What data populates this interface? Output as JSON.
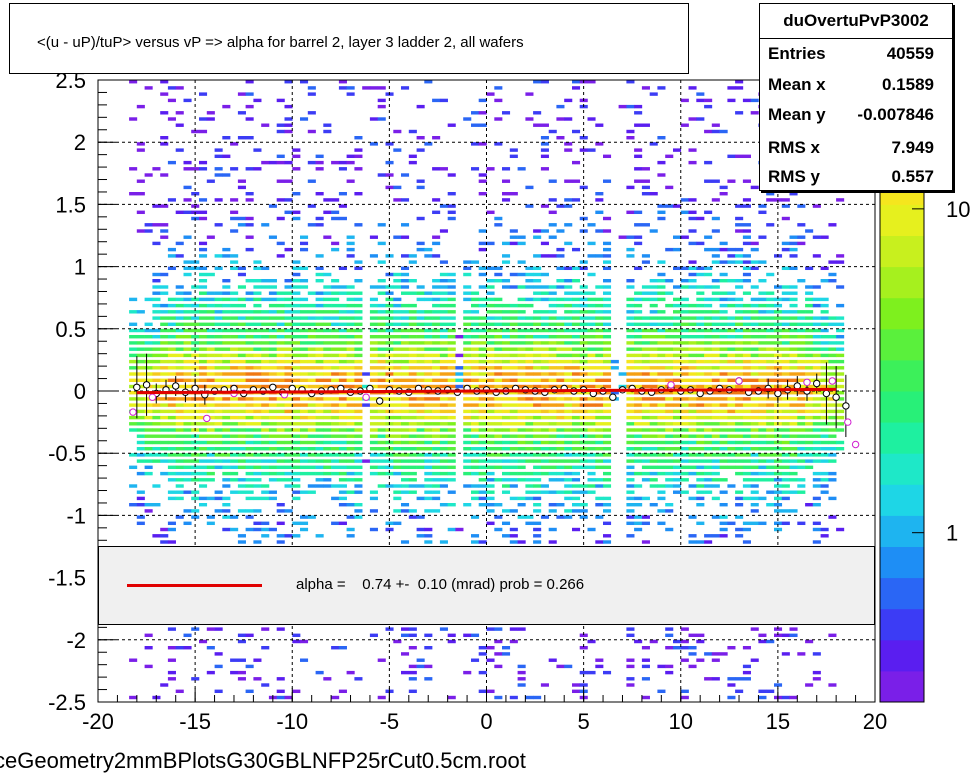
{
  "title": "<(u - uP)/tuP> versus   vP => alpha for barrel 2, layer 3 ladder 2, all wafers",
  "stats": {
    "name": "duOvertuPvP3002",
    "rows": [
      {
        "key": "Entries",
        "value": "40559"
      },
      {
        "key": "Mean x",
        "value": "0.1589"
      },
      {
        "key": "Mean y",
        "value": "-0.007846"
      },
      {
        "key": "RMS x",
        "value": "7.949"
      },
      {
        "key": "RMS y",
        "value": "0.557"
      }
    ]
  },
  "fit_legend": {
    "text": "alpha =    0.74 +-  0.10 (mrad) prob = 0.266",
    "line_color": "#e00000"
  },
  "footer": "ceGeometry2mmBPlotsG30GBLNFP25rCut0.5cm.root",
  "colors": {
    "fit_line": "#e00000",
    "frame": "#000000",
    "palette": [
      "#7a1fe8",
      "#5a1ef0",
      "#3c3cf5",
      "#2a66f5",
      "#1e8ef5",
      "#1eb4f0",
      "#1ed6e6",
      "#1ee8c8",
      "#1ef0a0",
      "#28f078",
      "#3cf05a",
      "#5af03c",
      "#7ef01e",
      "#a6f01e",
      "#c8f01e",
      "#e6f01e",
      "#f5e61e",
      "#f5c81e",
      "#f5a014",
      "#f07814"
    ]
  },
  "chart_data": {
    "type": "heatmap",
    "title": "<(u - uP)/tuP> versus   vP => alpha for barrel 2, layer 3 ladder 2, all wafers",
    "xlabel": "",
    "ylabel": "",
    "xlim": [
      -20,
      20
    ],
    "ylim": [
      -2.5,
      2.5
    ],
    "x_ticks": [
      "-20",
      "-15",
      "-10",
      "-5",
      "0",
      "5",
      "10",
      "15",
      "20"
    ],
    "y_ticks": [
      "-2.5",
      "-2",
      "-1.5",
      "-1",
      "-0.5",
      "0",
      "0.5",
      "1",
      "1.5",
      "2",
      "2.5"
    ],
    "z_scale": "log",
    "z_tick_labels": [
      "1",
      "10"
    ],
    "z_tick_values": [
      1,
      10
    ],
    "z_range": [
      0.3,
      25
    ],
    "grid": true,
    "gaps_x": [
      -6.2,
      -1.5,
      6.8
    ],
    "core_band": {
      "y_center": 0.0,
      "y_halfwidth": 0.55
    },
    "fit_line": {
      "slope_mrad": 0.74,
      "x": [
        -18,
        18
      ],
      "y_at_x0": 0.0
    },
    "profile_points": {
      "x": [
        -18,
        -17.5,
        -17,
        -16.5,
        -16,
        -15.5,
        -15,
        -14.5,
        -14,
        -13.5,
        -13,
        -12.5,
        -12,
        -11.5,
        -11,
        -10.5,
        -10,
        -9.5,
        -9,
        -8.5,
        -8,
        -7.5,
        -7,
        -6.5,
        -6,
        -5.5,
        -5,
        -4.5,
        -4,
        -3.5,
        -3,
        -2.5,
        -2,
        -1.5,
        -1,
        -0.5,
        0,
        0.5,
        1,
        1.5,
        2,
        2.5,
        3,
        3.5,
        4,
        4.5,
        5,
        5.5,
        6,
        6.5,
        7,
        7.5,
        8,
        8.5,
        9,
        9.5,
        10,
        10.5,
        11,
        11.5,
        12,
        12.5,
        13,
        13.5,
        14,
        14.5,
        15,
        15.5,
        16,
        16.5,
        17,
        17.5,
        18,
        18.5
      ],
      "y": [
        0.03,
        0.05,
        -0.02,
        0.01,
        0.04,
        -0.01,
        0.02,
        -0.03,
        0.0,
        0.01,
        0.02,
        -0.02,
        0.01,
        0.0,
        0.03,
        -0.01,
        0.02,
        0.01,
        -0.02,
        0.0,
        0.01,
        0.02,
        -0.01,
        0.0,
        0.02,
        -0.08,
        0.01,
        0.0,
        -0.01,
        0.02,
        0.01,
        0.0,
        0.01,
        -0.01,
        0.02,
        0.0,
        0.01,
        -0.01,
        0.0,
        0.02,
        0.01,
        0.0,
        -0.01,
        0.01,
        0.02,
        0.0,
        0.01,
        -0.02,
        0.0,
        -0.05,
        0.01,
        0.02,
        0.0,
        -0.01,
        0.01,
        0.02,
        0.0,
        0.01,
        -0.02,
        0.0,
        0.02,
        0.01,
        0.08,
        -0.01,
        0.0,
        0.02,
        -0.02,
        0.01,
        0.04,
        0.0,
        0.06,
        -0.02,
        -0.05,
        -0.12
      ]
    },
    "profile_points_magenta": {
      "x": [
        -18.2,
        -17.2,
        -14.4,
        -13.0,
        -10.4,
        -6.2,
        9.5,
        13.0,
        16.5,
        17.8,
        18.6,
        19.0
      ],
      "y": [
        -0.17,
        -0.05,
        -0.22,
        -0.02,
        -0.03,
        -0.05,
        0.05,
        0.08,
        0.07,
        0.08,
        -0.25,
        -0.43
      ]
    }
  }
}
